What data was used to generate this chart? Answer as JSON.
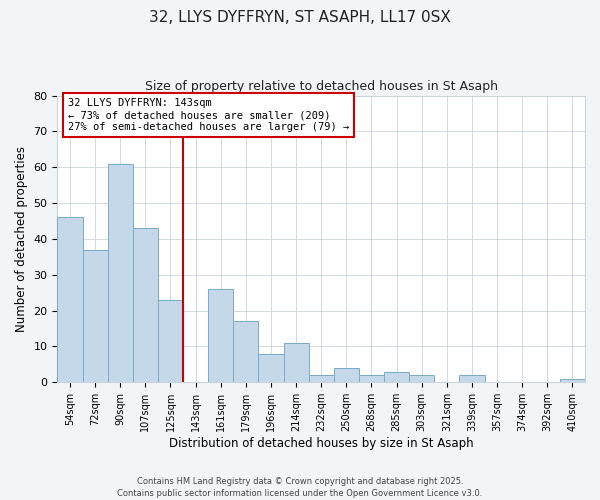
{
  "title1": "32, LLYS DYFFRYN, ST ASAPH, LL17 0SX",
  "title2": "Size of property relative to detached houses in St Asaph",
  "xlabel": "Distribution of detached houses by size in St Asaph",
  "ylabel": "Number of detached properties",
  "bar_labels": [
    "54sqm",
    "72sqm",
    "90sqm",
    "107sqm",
    "125sqm",
    "143sqm",
    "161sqm",
    "179sqm",
    "196sqm",
    "214sqm",
    "232sqm",
    "250sqm",
    "268sqm",
    "285sqm",
    "303sqm",
    "321sqm",
    "339sqm",
    "357sqm",
    "374sqm",
    "392sqm",
    "410sqm"
  ],
  "bar_values": [
    46,
    37,
    61,
    43,
    23,
    0,
    26,
    17,
    8,
    11,
    2,
    4,
    2,
    3,
    2,
    0,
    2,
    0,
    0,
    0,
    1
  ],
  "bar_color": "#c5d8ea",
  "bar_edge_color": "#7aaac8",
  "highlight_index": 5,
  "highlight_color": "#cc0000",
  "ylim": [
    0,
    80
  ],
  "yticks": [
    0,
    10,
    20,
    30,
    40,
    50,
    60,
    70,
    80
  ],
  "annotation_title": "32 LLYS DYFFRYN: 143sqm",
  "annotation_line1": "← 73% of detached houses are smaller (209)",
  "annotation_line2": "27% of semi-detached houses are larger (79) →",
  "footer1": "Contains HM Land Registry data © Crown copyright and database right 2025.",
  "footer2": "Contains public sector information licensed under the Open Government Licence v3.0.",
  "bg_color": "#f2f5f8",
  "plot_bg_color": "#ffffff",
  "grid_color": "#c8d4de"
}
